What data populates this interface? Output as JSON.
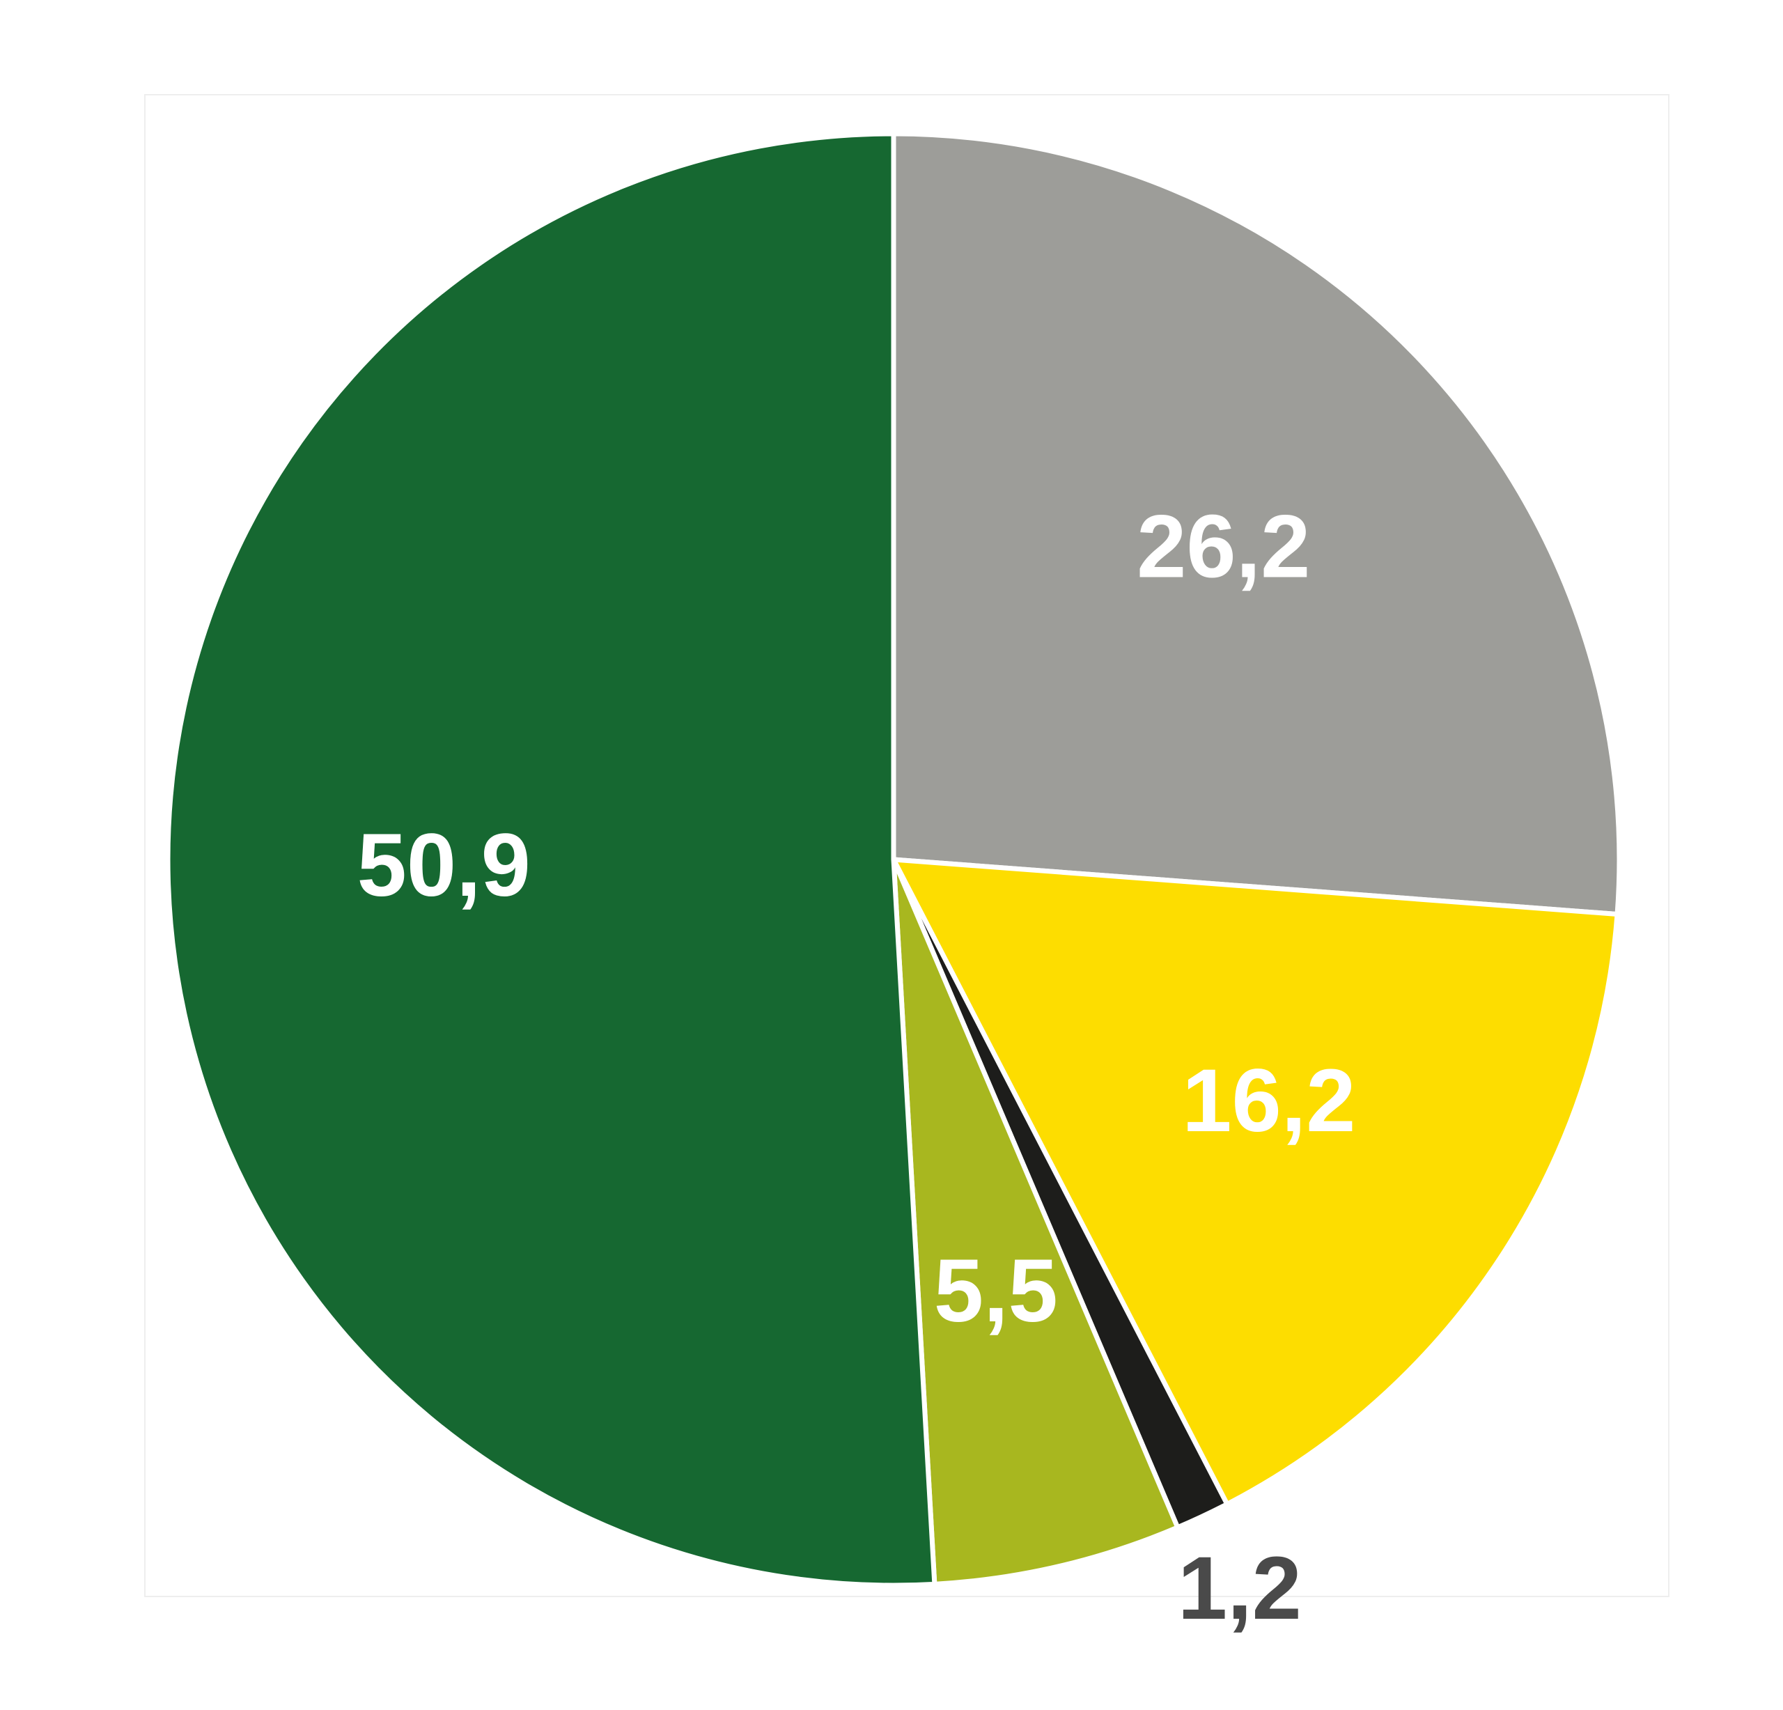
{
  "chart_data": {
    "type": "pie",
    "series": [
      {
        "values": [
          26.2,
          16.2,
          1.2,
          5.5,
          50.9
        ],
        "value_labels": [
          "26,2",
          "16,2",
          "1,2",
          "5,5",
          "50,9"
        ],
        "colors": [
          "#9d9d99",
          "#fddd00",
          "#1d1d1b",
          "#a8b71f",
          "#166831"
        ]
      }
    ]
  }
}
